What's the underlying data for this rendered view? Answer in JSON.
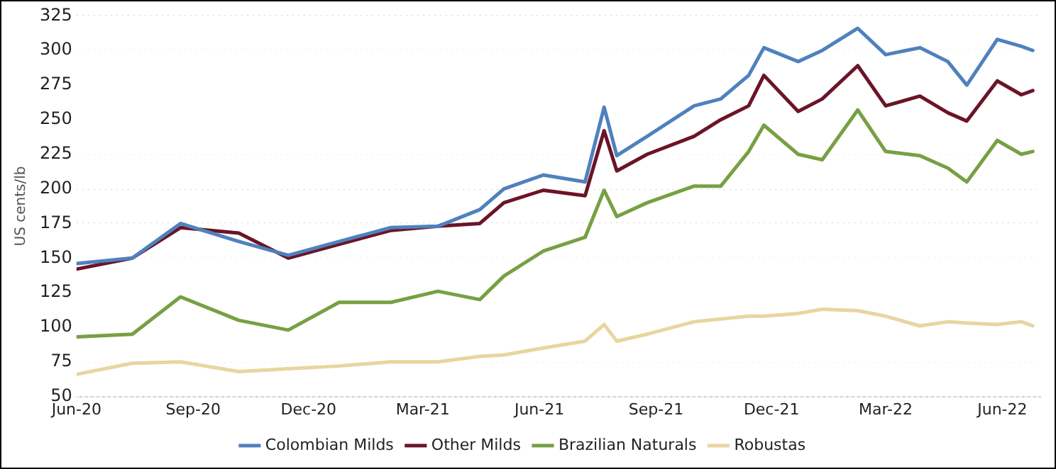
{
  "chart_data": {
    "type": "line",
    "ylabel": "US cents/lb",
    "x": [
      "2020-06-01",
      "2020-07-15",
      "2020-08-22",
      "2020-10-07",
      "2020-11-15",
      "2020-12-25",
      "2021-02-04",
      "2021-03-13",
      "2021-04-15",
      "2021-05-04",
      "2021-06-04",
      "2021-07-07",
      "2021-07-22",
      "2021-08-01",
      "2021-08-25",
      "2021-10-01",
      "2021-10-22",
      "2021-11-13",
      "2021-11-25",
      "2021-12-22",
      "2022-01-10",
      "2022-02-07",
      "2022-03-01",
      "2022-03-28",
      "2022-04-19",
      "2022-05-04",
      "2022-05-28",
      "2022-06-16",
      "2022-06-25"
    ],
    "series": [
      {
        "name": "Colombian Milds",
        "color": "#4f81bd",
        "values": [
          146,
          150,
          175,
          162,
          152,
          162,
          172,
          173,
          185,
          200,
          210,
          205,
          259,
          224,
          238,
          260,
          265,
          282,
          302,
          292,
          300,
          316,
          297,
          302,
          292,
          275,
          308,
          303,
          300
        ]
      },
      {
        "name": "Other Milds",
        "color": "#6b1428",
        "values": [
          142,
          150,
          172,
          168,
          150,
          160,
          170,
          173,
          175,
          190,
          199,
          195,
          242,
          213,
          225,
          238,
          250,
          260,
          282,
          256,
          265,
          289,
          260,
          267,
          255,
          249,
          278,
          268,
          271
        ]
      },
      {
        "name": "Brazilian Naturals",
        "color": "#77a043",
        "values": [
          93,
          95,
          122,
          105,
          98,
          118,
          118,
          126,
          120,
          137,
          155,
          165,
          199,
          180,
          190,
          202,
          202,
          227,
          246,
          225,
          221,
          257,
          227,
          224,
          215,
          205,
          235,
          225,
          227
        ]
      },
      {
        "name": "Robustas",
        "color": "#e8d5a0",
        "values": [
          66,
          74,
          75,
          68,
          70,
          72,
          75,
          75,
          79,
          80,
          85,
          90,
          102,
          90,
          95,
          104,
          106,
          108,
          108,
          110,
          113,
          112,
          108,
          101,
          104,
          103,
          102,
          104,
          101
        ]
      }
    ],
    "xlim": [
      "2020-06-01",
      "2022-07-01"
    ],
    "xticks": [
      {
        "value": "2020-06-01",
        "label": "Jun-20"
      },
      {
        "value": "2020-09-01",
        "label": "Sep-20"
      },
      {
        "value": "2020-12-01",
        "label": "Dec-20"
      },
      {
        "value": "2021-03-01",
        "label": "Mar-21"
      },
      {
        "value": "2021-06-01",
        "label": "Jun-21"
      },
      {
        "value": "2021-09-01",
        "label": "Sep-21"
      },
      {
        "value": "2021-12-01",
        "label": "Dec-21"
      },
      {
        "value": "2022-03-01",
        "label": "Mar-22"
      },
      {
        "value": "2022-06-01",
        "label": "Jun-22"
      }
    ],
    "ylim": [
      50,
      325
    ],
    "yticks": [
      50,
      75,
      100,
      125,
      150,
      175,
      200,
      225,
      250,
      275,
      300,
      325
    ],
    "grid": "y",
    "legend": "bottom",
    "marker": "none",
    "line_style": "solid"
  }
}
